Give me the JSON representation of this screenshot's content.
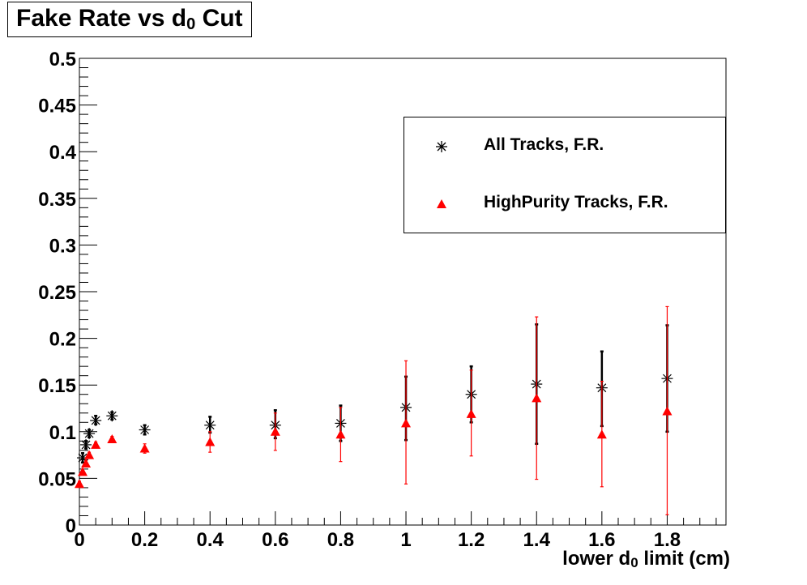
{
  "chart_data": {
    "type": "scatter",
    "title_main": "Fake Rate vs d",
    "title_sub": "0",
    "title_tail": " Cut",
    "xlabel_main": "lower d",
    "xlabel_sub": "0",
    "xlabel_tail": " limit (cm)",
    "xlim": [
      0,
      1.98
    ],
    "ylim": [
      0,
      0.5
    ],
    "xticks": [
      "0",
      "0.2",
      "0.4",
      "0.6",
      "0.8",
      "1",
      "1.2",
      "1.4",
      "1.6",
      "1.8"
    ],
    "yticks": [
      "0",
      "0.05",
      "0.1",
      "0.15",
      "0.2",
      "0.25",
      "0.3",
      "0.35",
      "0.4",
      "0.45",
      "0.5"
    ],
    "legend_position": "top-right",
    "series": [
      {
        "name": "All Tracks, F.R.",
        "marker": "star",
        "color": "#000000",
        "points": [
          {
            "x": 0.01,
            "y": 0.072,
            "lo": 0.067,
            "hi": 0.077
          },
          {
            "x": 0.02,
            "y": 0.086,
            "lo": 0.082,
            "hi": 0.09
          },
          {
            "x": 0.03,
            "y": 0.098,
            "lo": 0.094,
            "hi": 0.102
          },
          {
            "x": 0.05,
            "y": 0.112,
            "lo": 0.108,
            "hi": 0.117
          },
          {
            "x": 0.1,
            "y": 0.117,
            "lo": 0.113,
            "hi": 0.121
          },
          {
            "x": 0.2,
            "y": 0.102,
            "lo": 0.097,
            "hi": 0.107
          },
          {
            "x": 0.4,
            "y": 0.107,
            "lo": 0.099,
            "hi": 0.116
          },
          {
            "x": 0.6,
            "y": 0.107,
            "lo": 0.093,
            "hi": 0.123
          },
          {
            "x": 0.8,
            "y": 0.109,
            "lo": 0.09,
            "hi": 0.128
          },
          {
            "x": 1.0,
            "y": 0.126,
            "lo": 0.091,
            "hi": 0.159
          },
          {
            "x": 1.2,
            "y": 0.14,
            "lo": 0.11,
            "hi": 0.17
          },
          {
            "x": 1.4,
            "y": 0.151,
            "lo": 0.087,
            "hi": 0.215
          },
          {
            "x": 1.6,
            "y": 0.147,
            "lo": 0.106,
            "hi": 0.186
          },
          {
            "x": 1.8,
            "y": 0.157,
            "lo": 0.1,
            "hi": 0.214
          }
        ]
      },
      {
        "name": "HighPurity Tracks, F.R.",
        "marker": "triangle",
        "color": "#ff0000",
        "points": [
          {
            "x": 0.0,
            "y": 0.044,
            "lo": 0.041,
            "hi": 0.047
          },
          {
            "x": 0.01,
            "y": 0.057,
            "lo": 0.054,
            "hi": 0.06
          },
          {
            "x": 0.02,
            "y": 0.066,
            "lo": 0.063,
            "hi": 0.069
          },
          {
            "x": 0.03,
            "y": 0.075,
            "lo": 0.072,
            "hi": 0.078
          },
          {
            "x": 0.05,
            "y": 0.086,
            "lo": 0.083,
            "hi": 0.089
          },
          {
            "x": 0.1,
            "y": 0.092,
            "lo": 0.089,
            "hi": 0.095
          },
          {
            "x": 0.2,
            "y": 0.082,
            "lo": 0.077,
            "hi": 0.087
          },
          {
            "x": 0.4,
            "y": 0.089,
            "lo": 0.078,
            "hi": 0.1
          },
          {
            "x": 0.6,
            "y": 0.1,
            "lo": 0.08,
            "hi": 0.12
          },
          {
            "x": 0.8,
            "y": 0.097,
            "lo": 0.068,
            "hi": 0.126
          },
          {
            "x": 1.0,
            "y": 0.109,
            "lo": 0.044,
            "hi": 0.176
          },
          {
            "x": 1.2,
            "y": 0.119,
            "lo": 0.074,
            "hi": 0.166
          },
          {
            "x": 1.4,
            "y": 0.136,
            "lo": 0.049,
            "hi": 0.223
          },
          {
            "x": 1.6,
            "y": 0.097,
            "lo": 0.041,
            "hi": 0.154
          },
          {
            "x": 1.8,
            "y": 0.122,
            "lo": 0.011,
            "hi": 0.234
          }
        ]
      }
    ]
  }
}
